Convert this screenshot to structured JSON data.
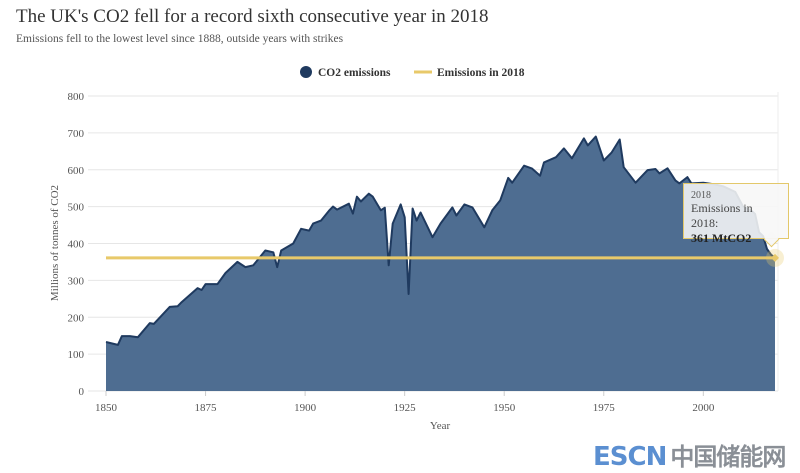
{
  "header": {
    "title": "The UK's CO2 fell for a record sixth consecutive year in 2018",
    "subtitle": "Emissions fell to the lowest level since 1888, outside years with strikes"
  },
  "chart_data": {
    "type": "area",
    "title": "The UK's CO2 fell for a record sixth consecutive year in 2018",
    "subtitle": "Emissions fell to the lowest level since 1888, outside years with strikes",
    "xlabel": "Year",
    "ylabel": "Millions of tonnes of CO2",
    "xlim": [
      1850,
      2018
    ],
    "ylim": [
      0,
      800
    ],
    "xticks": [
      1850,
      1875,
      1900,
      1925,
      1950,
      1975,
      2000
    ],
    "yticks": [
      0,
      100,
      200,
      300,
      400,
      500,
      600,
      700,
      800
    ],
    "grid": true,
    "legend_position": "top",
    "series": [
      {
        "name": "CO2 emissions",
        "color": "#4e6d91",
        "stroke": "#1f3a5f",
        "x": [
          1850,
          1853,
          1854,
          1856,
          1858,
          1861,
          1862,
          1866,
          1868,
          1869,
          1873,
          1874,
          1875,
          1878,
          1880,
          1883,
          1885,
          1887,
          1890,
          1892,
          1893,
          1894,
          1897,
          1899,
          1901,
          1902,
          1904,
          1906,
          1907,
          1908,
          1911,
          1912,
          1913,
          1914,
          1916,
          1917,
          1919,
          1920,
          1921,
          1922,
          1924,
          1925,
          1926,
          1927,
          1928,
          1929,
          1932,
          1934,
          1937,
          1938,
          1940,
          1942,
          1945,
          1947,
          1949,
          1951,
          1952,
          1955,
          1957,
          1959,
          1960,
          1963,
          1965,
          1967,
          1970,
          1971,
          1973,
          1975,
          1977,
          1979,
          1980,
          1983,
          1986,
          1988,
          1989,
          1991,
          1993,
          1994,
          1996,
          1997,
          2000,
          2003,
          2005,
          2008,
          2010,
          2012,
          2013,
          2014,
          2015,
          2016,
          2017,
          2018
        ],
        "y": [
          133,
          125,
          149,
          149,
          146,
          184,
          182,
          228,
          230,
          241,
          279,
          274,
          290,
          290,
          320,
          350,
          336,
          341,
          381,
          376,
          336,
          381,
          400,
          440,
          435,
          454,
          462,
          489,
          500,
          492,
          508,
          481,
          527,
          514,
          535,
          527,
          490,
          497,
          341,
          454,
          506,
          471,
          263,
          495,
          462,
          484,
          417,
          454,
          498,
          476,
          506,
          498,
          444,
          490,
          517,
          578,
          565,
          611,
          603,
          584,
          620,
          634,
          658,
          631,
          685,
          666,
          690,
          625,
          647,
          682,
          607,
          565,
          599,
          602,
          590,
          604,
          571,
          563,
          580,
          563,
          565,
          560,
          555,
          540,
          500,
          490,
          480,
          430,
          420,
          385,
          370,
          361
        ]
      },
      {
        "name": "Emissions in 2018",
        "color": "#e8c96a",
        "value": 361
      }
    ]
  },
  "legend": {
    "items": [
      {
        "label": "CO2 emissions",
        "color": "#1f3a5f"
      },
      {
        "label": "Emissions in 2018",
        "color": "#e8c96a"
      }
    ]
  },
  "tooltip": {
    "year": "2018",
    "label": "Emissions in 2018:",
    "value": "361 MtCO2"
  },
  "watermark": {
    "latin": "ESCN",
    "chinese": "中国储能网"
  }
}
